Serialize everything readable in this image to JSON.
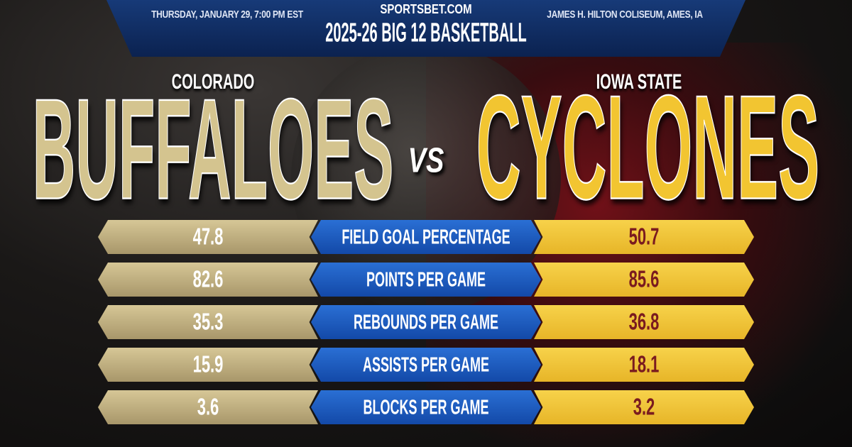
{
  "header": {
    "date": "THURSDAY, JANUARY 29, 7:00 PM EST",
    "site": "SPORTSBET.COM",
    "venue": "JAMES H. HILTON COLISEUM, AMES, IA",
    "title": "2025-26 BIG 12 BASKETBALL"
  },
  "teams": {
    "left": {
      "school": "COLORADO",
      "name": "BUFFALOES",
      "color": "#d4c48f"
    },
    "vs": "VS",
    "right": {
      "school": "IOWA STATE",
      "name": "CYCLONES",
      "color": "#f2c531"
    }
  },
  "stats": [
    {
      "label": "FIELD GOAL PERCENTAGE",
      "left": "47.8",
      "right": "50.7"
    },
    {
      "label": "POINTS PER GAME",
      "left": "82.6",
      "right": "85.6"
    },
    {
      "label": "REBOUNDS PER GAME",
      "left": "35.3",
      "right": "36.8"
    },
    {
      "label": "ASSISTS PER GAME",
      "left": "15.9",
      "right": "18.1"
    },
    {
      "label": "BLOCKS PER GAME",
      "left": "3.6",
      "right": "3.2"
    }
  ]
}
